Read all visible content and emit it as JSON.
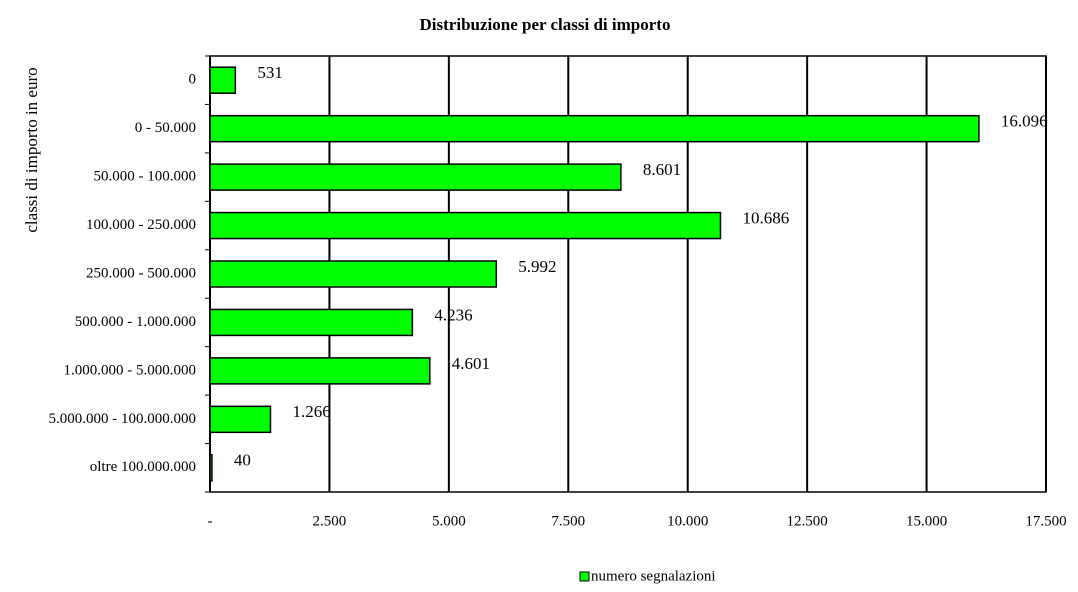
{
  "chart_data": {
    "type": "bar",
    "orientation": "horizontal",
    "title": "Distribuzione per classi di importo",
    "y_label": "classi di importo in euro",
    "categories": [
      "0",
      "0 - 50.000",
      "50.000 - 100.000",
      "100.000 - 250.000",
      "250.000 - 500.000",
      "500.000 - 1.000.000",
      "1.000.000 - 5.000.000",
      "5.000.000 - 100.000.000",
      "oltre 100.000.000"
    ],
    "series": [
      {
        "name": "numero segnalazioni",
        "color": "#00ff00",
        "values": [
          531,
          16096,
          8601,
          10686,
          5992,
          4236,
          4601,
          1266,
          40
        ],
        "value_labels": [
          "531",
          "16.096",
          "8.601",
          "10.686",
          "5.992",
          "4.236",
          "4.601",
          "1.266",
          "40"
        ]
      }
    ],
    "xlim": [
      0,
      17500
    ],
    "xticks": [
      {
        "value": 0,
        "label": "-"
      },
      {
        "value": 2500,
        "label": "2.500"
      },
      {
        "value": 5000,
        "label": "5.000"
      },
      {
        "value": 7500,
        "label": "7.500"
      },
      {
        "value": 10000,
        "label": "10.000"
      },
      {
        "value": 12500,
        "label": "12.500"
      },
      {
        "value": 15000,
        "label": "15.000"
      },
      {
        "value": 17500,
        "label": "17.500"
      }
    ],
    "grid": true,
    "legend": "bottom"
  }
}
